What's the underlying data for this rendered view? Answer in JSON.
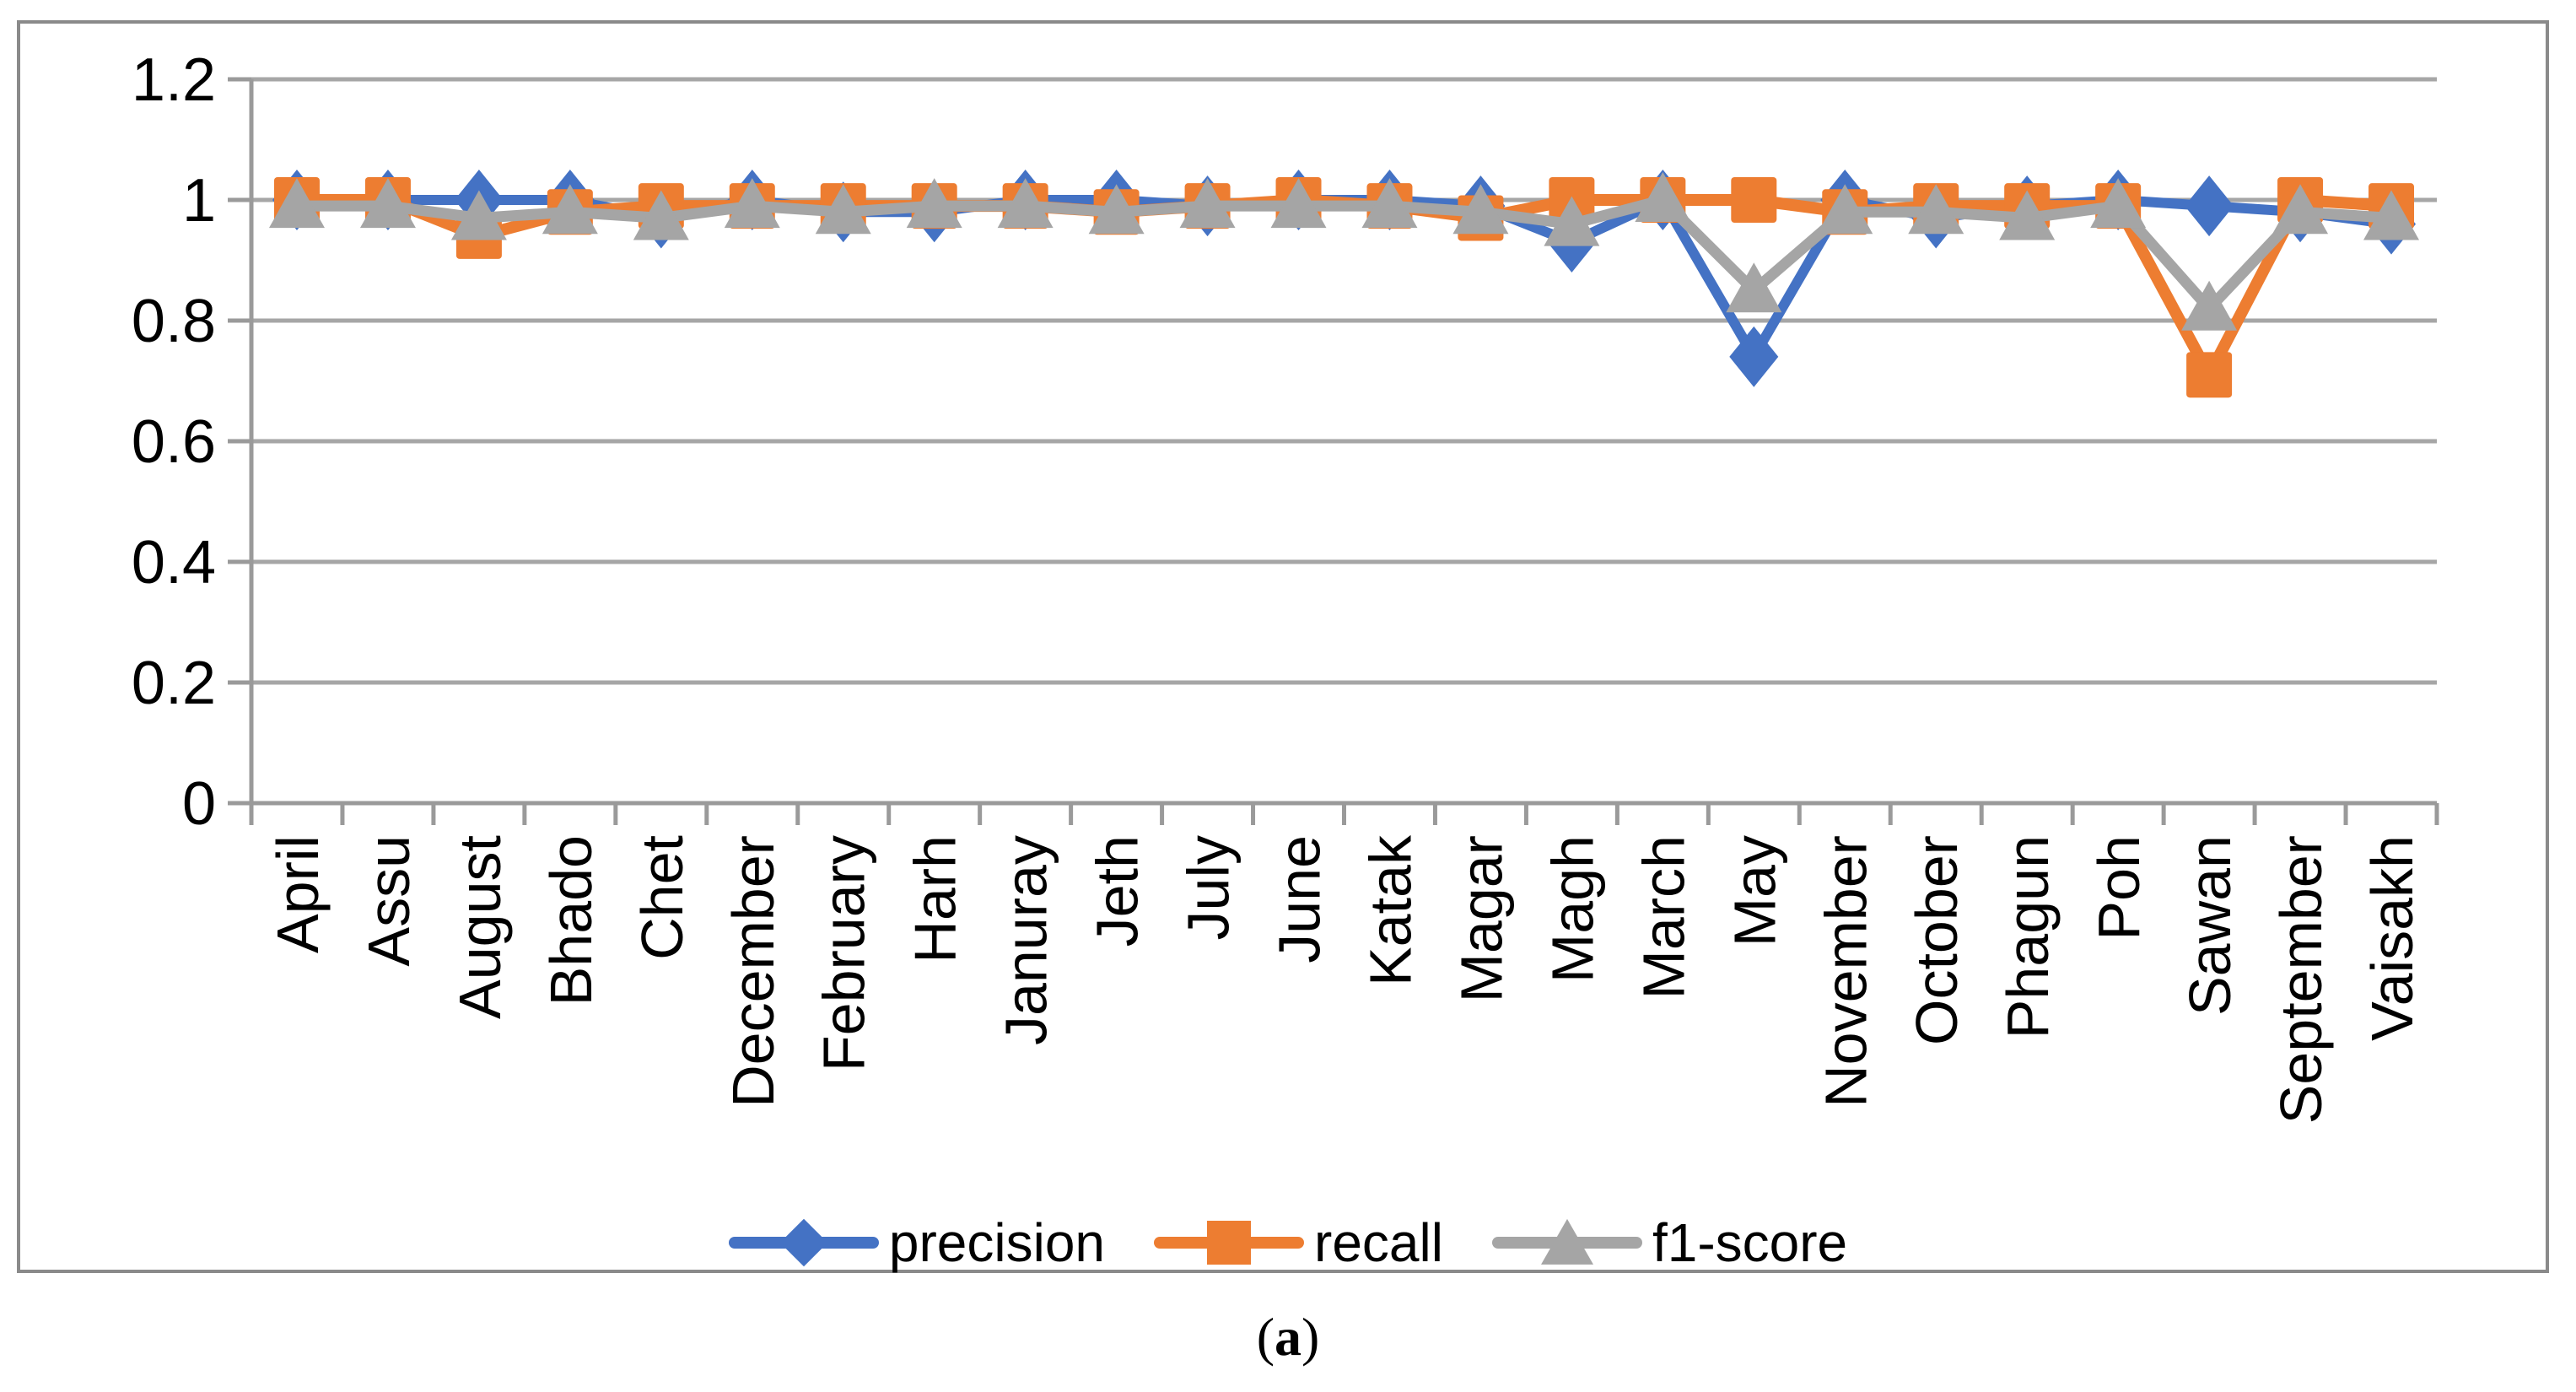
{
  "figure": {
    "caption": {
      "open": "(",
      "letter": "a",
      "close": ")"
    }
  },
  "chart_data": {
    "type": "line",
    "title": "",
    "xlabel": "",
    "ylabel": "",
    "categories": [
      "April",
      "Assu",
      "August",
      "Bhado",
      "Chet",
      "December",
      "February",
      "Harh",
      "Januray",
      "Jeth",
      "July",
      "June",
      "Katak",
      "Magar",
      "Magh",
      "March",
      "May",
      "November",
      "October",
      "Phagun",
      "Poh",
      "Sawan",
      "September",
      "Vaisakh"
    ],
    "series": [
      {
        "name": "precision",
        "marker": "diamond",
        "color": "#4472C4",
        "values": [
          1.0,
          1.0,
          1.0,
          1.0,
          0.97,
          1.0,
          0.98,
          0.98,
          1.0,
          1.0,
          0.99,
          1.0,
          1.0,
          0.99,
          0.93,
          1.0,
          0.74,
          1.0,
          0.97,
          0.99,
          1.0,
          0.99,
          0.98,
          0.96
        ]
      },
      {
        "name": "recall",
        "marker": "square",
        "color": "#ED7D31",
        "values": [
          1.0,
          1.0,
          0.94,
          0.98,
          0.99,
          0.99,
          0.99,
          0.99,
          0.99,
          0.98,
          0.99,
          1.0,
          0.99,
          0.97,
          1.0,
          1.0,
          1.0,
          0.98,
          0.99,
          0.99,
          0.99,
          0.71,
          1.0,
          0.99
        ]
      },
      {
        "name": "f1-score",
        "marker": "triangle",
        "color": "#A5A5A5",
        "values": [
          0.99,
          0.99,
          0.97,
          0.98,
          0.97,
          0.99,
          0.98,
          0.99,
          0.99,
          0.98,
          0.99,
          0.99,
          0.99,
          0.98,
          0.96,
          1.0,
          0.85,
          0.98,
          0.98,
          0.97,
          0.99,
          0.82,
          0.98,
          0.97
        ]
      }
    ],
    "ylim": [
      0,
      1.2
    ],
    "yticks": {
      "values": [
        0,
        0.2,
        0.4,
        0.6,
        0.8,
        1,
        1.2
      ],
      "labels": [
        "0",
        "0.2",
        "0.4",
        "0.6",
        "0.8",
        "1",
        "1.2"
      ]
    },
    "grid": true,
    "legend_position": "bottom",
    "grid_color": "#A6A6A6",
    "axis_color": "#9A9A9A",
    "border_color": "#8A8A8A",
    "text_color": "#000000"
  }
}
